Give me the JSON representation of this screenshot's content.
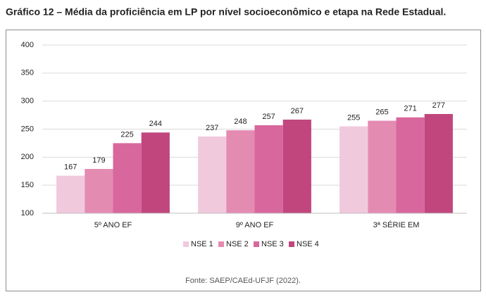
{
  "chart_data": {
    "type": "bar",
    "title": "Gráfico 12 – Média da proficiência em LP por nível socioeconômico e etapa na Rede Estadual.",
    "source": "Fonte: SAEP/CAEd-UFJF (2022).",
    "categories": [
      "5º ANO EF",
      "9º ANO EF",
      "3ª SÉRIE EM"
    ],
    "series": [
      {
        "name": "NSE 1",
        "color": "#f1c9dd",
        "values": [
          167,
          237,
          255
        ]
      },
      {
        "name": "NSE 2",
        "color": "#e48bb2",
        "values": [
          179,
          248,
          265
        ]
      },
      {
        "name": "NSE 3",
        "color": "#d8679d",
        "values": [
          225,
          257,
          271
        ]
      },
      {
        "name": "NSE 4",
        "color": "#c0467d",
        "values": [
          244,
          267,
          277
        ]
      }
    ],
    "ylim": [
      100,
      400
    ],
    "yticks": [
      100,
      150,
      200,
      250,
      300,
      350,
      400
    ],
    "grid": true,
    "legend": "bottom"
  }
}
